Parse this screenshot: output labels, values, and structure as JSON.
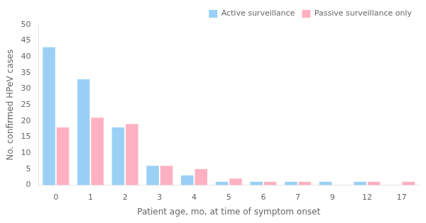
{
  "chart_data": {
    "type": "bar",
    "categories": [
      "0",
      "1",
      "2",
      "3",
      "4",
      "5",
      "6",
      "7",
      "9",
      "12",
      "17"
    ],
    "series": [
      {
        "name": "Active surveillance",
        "values": [
          43,
          33,
          18,
          6,
          3,
          1,
          1,
          1,
          1,
          1,
          0
        ]
      },
      {
        "name": "Passive surveillance only",
        "values": [
          18,
          21,
          19,
          6,
          5,
          2,
          1,
          1,
          0,
          1,
          1
        ]
      }
    ],
    "xlabel": "Patient age, mo, at time of symptom onset",
    "ylabel": "No. confirmed HPeV cases",
    "ylim": [
      0,
      50
    ],
    "yticks": [
      0,
      5,
      10,
      15,
      20,
      25,
      30,
      35,
      40,
      45,
      50
    ],
    "legend": "upper right",
    "grid": false
  }
}
